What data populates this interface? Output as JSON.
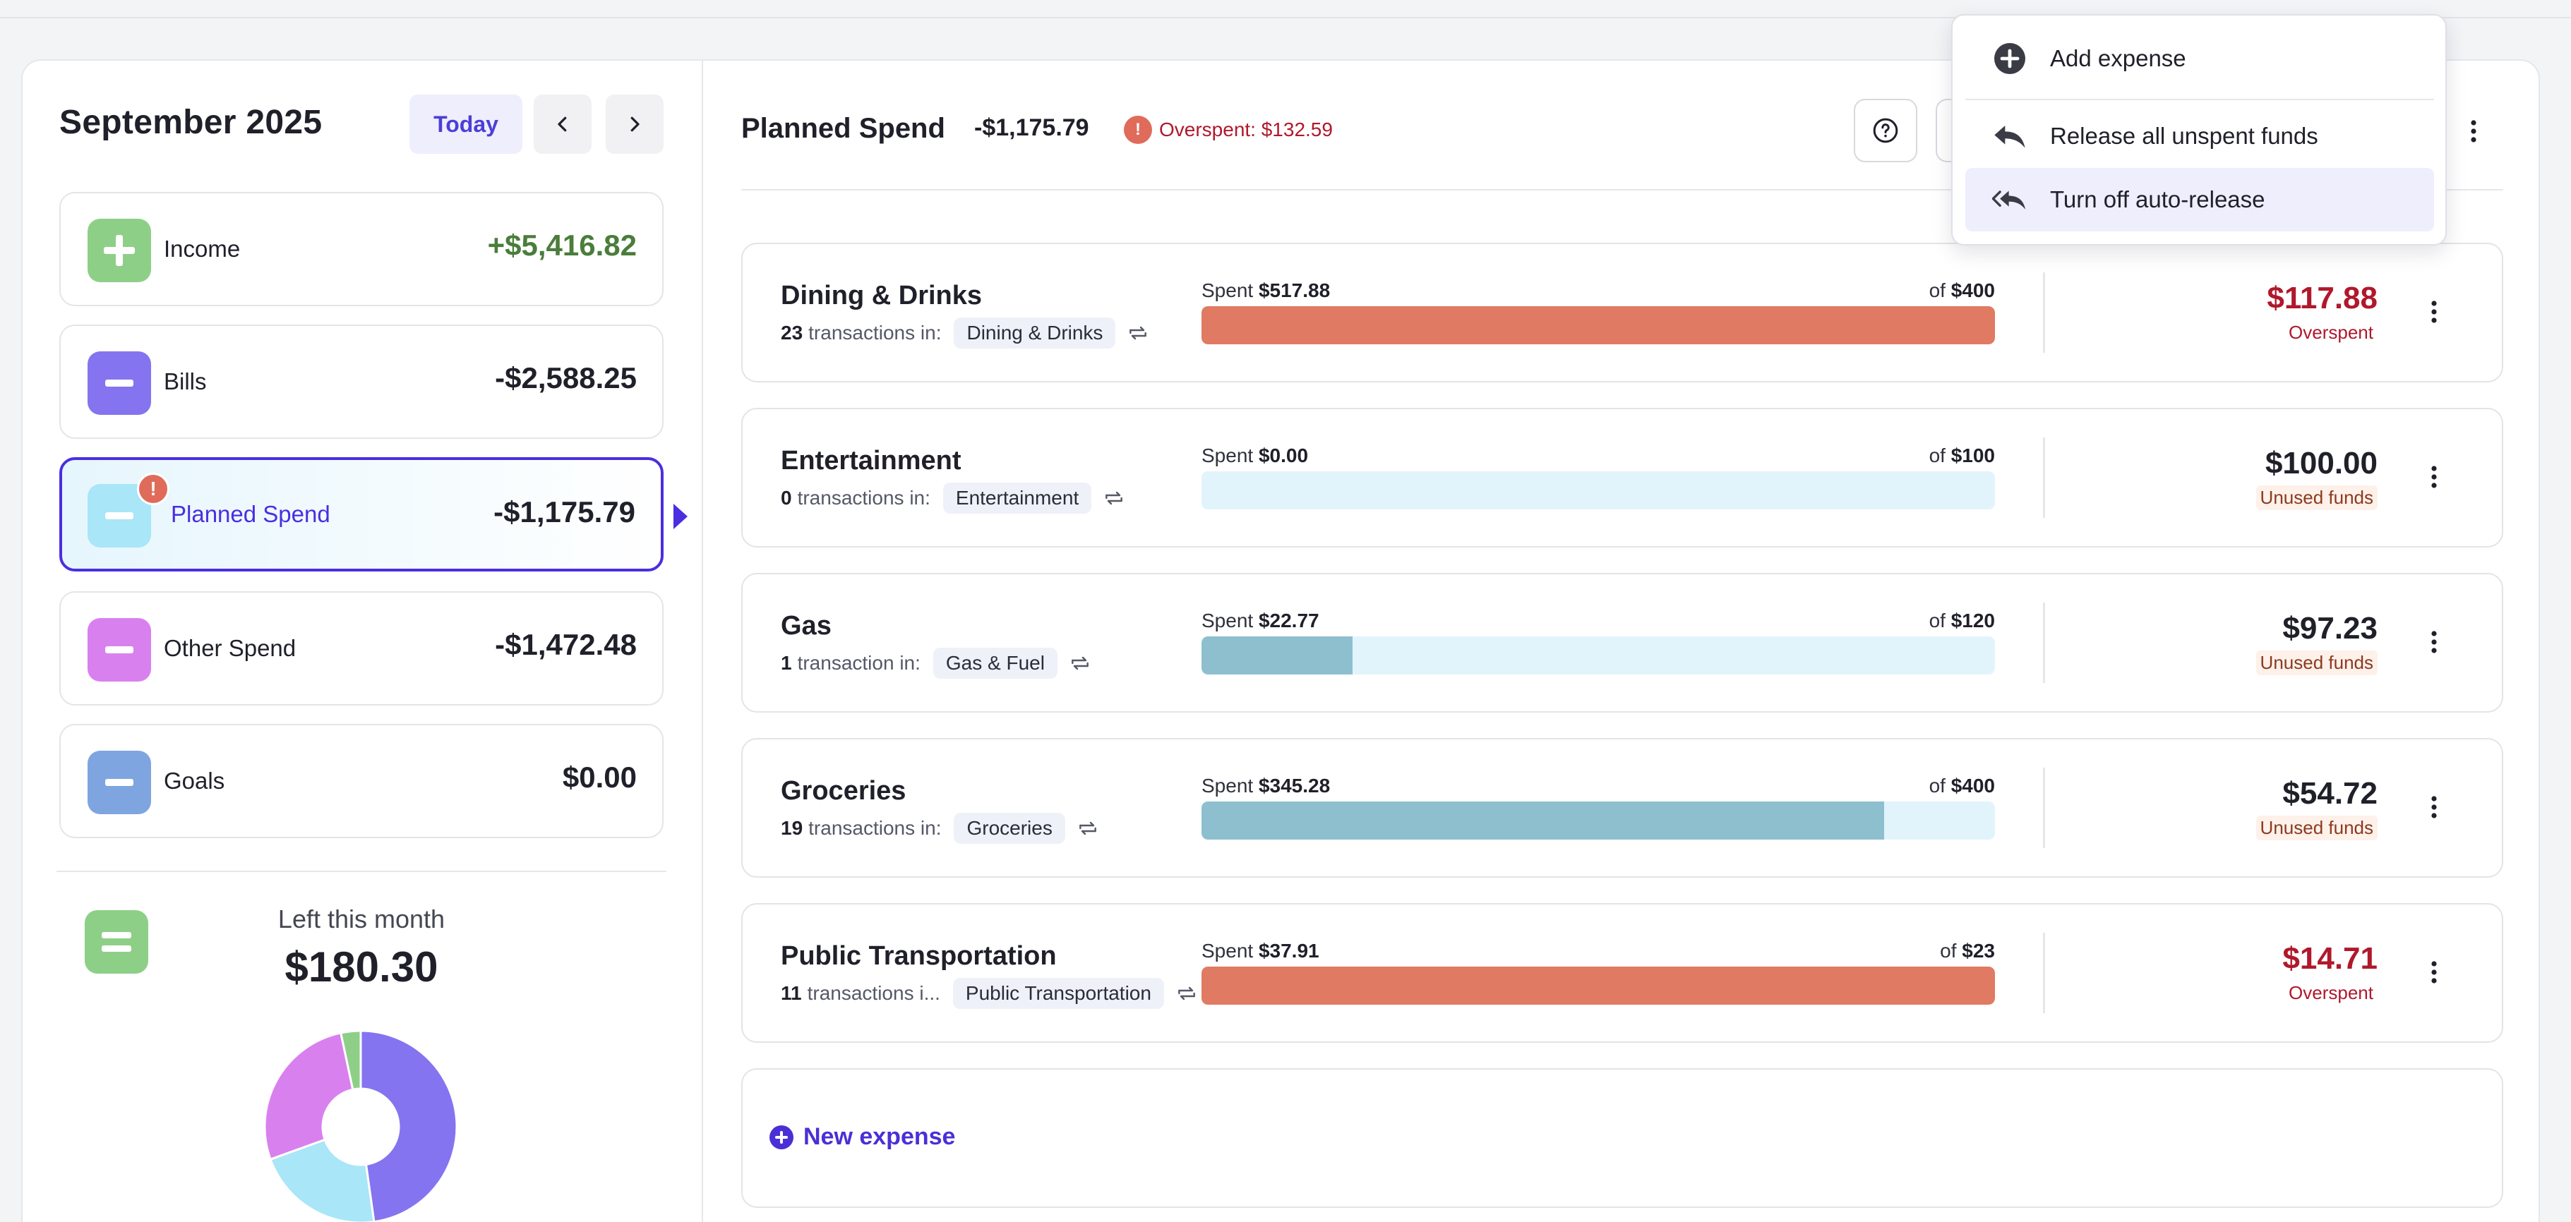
{
  "month": {
    "title": "September 2025",
    "today_label": "Today"
  },
  "categories": [
    {
      "label": "Income",
      "amount": "+$5,416.82",
      "color": "#8ecf88",
      "amount_color": "#4a7d3a",
      "icon": "plus-icon"
    },
    {
      "label": "Bills",
      "amount": "-$2,588.25",
      "color": "#8474f0",
      "amount_color": "#1f2029",
      "icon": "minus-icon"
    },
    {
      "label": "Planned Spend",
      "amount": "-$1,175.79",
      "color": "#a9e6f7",
      "amount_color": "#1f2029",
      "icon": "minus-icon",
      "alert": "!"
    },
    {
      "label": "Other Spend",
      "amount": "-$1,472.48",
      "color": "#d980ef",
      "amount_color": "#1f2029",
      "icon": "minus-icon"
    },
    {
      "label": "Goals",
      "amount": "$0.00",
      "color": "#7ea5e0",
      "amount_color": "#1f2029",
      "icon": "minus-icon"
    }
  ],
  "left_summary": {
    "label": "Left this month",
    "amount": "$180.30"
  },
  "donut": {
    "segments": [
      {
        "name": "Bills",
        "value": 2588.25,
        "color": "#8474f0"
      },
      {
        "name": "Planned Spend",
        "value": 1175.79,
        "color": "#a9e6f7"
      },
      {
        "name": "Other Spend",
        "value": 1472.48,
        "color": "#d980ef"
      },
      {
        "name": "Left",
        "value": 180.3,
        "color": "#8ecf88"
      }
    ]
  },
  "planned": {
    "title": "Planned Spend",
    "total": "-$1,175.79",
    "alert": "!",
    "overspent": "Overspent: $132.59"
  },
  "expenses": [
    {
      "name": "Dining & Drinks",
      "count": "23",
      "count_suffix": "transactions in:",
      "tag": "Dining & Drinks",
      "spent_prefix": "Spent",
      "spent": "$517.88",
      "of_prefix": "of",
      "budget": "$400",
      "progress": 1.0,
      "fill_color": "#e07a62",
      "remaining": "$117.88",
      "status": "Overspent",
      "over": true
    },
    {
      "name": "Entertainment",
      "count": "0",
      "count_suffix": "transactions in:",
      "tag": "Entertainment",
      "spent_prefix": "Spent",
      "spent": "$0.00",
      "of_prefix": "of",
      "budget": "$100",
      "progress": 0.0,
      "fill_color": "#8dbfcf",
      "remaining": "$100.00",
      "status": "Unused funds",
      "over": false
    },
    {
      "name": "Gas",
      "count": "1",
      "count_suffix": "transaction in:",
      "tag": "Gas & Fuel",
      "spent_prefix": "Spent",
      "spent": "$22.77",
      "of_prefix": "of",
      "budget": "$120",
      "progress": 0.19,
      "fill_color": "#8dbfcf",
      "remaining": "$97.23",
      "status": "Unused funds",
      "over": false
    },
    {
      "name": "Groceries",
      "count": "19",
      "count_suffix": "transactions in:",
      "tag": "Groceries",
      "spent_prefix": "Spent",
      "spent": "$345.28",
      "of_prefix": "of",
      "budget": "$400",
      "progress": 0.86,
      "fill_color": "#8dbfcf",
      "remaining": "$54.72",
      "status": "Unused funds",
      "over": false
    },
    {
      "name": "Public Transportation",
      "count": "11",
      "count_suffix": "transactions i...",
      "tag": "Public Transportation",
      "spent_prefix": "Spent",
      "spent": "$37.91",
      "of_prefix": "of",
      "budget": "$23",
      "progress": 1.0,
      "fill_color": "#e07a62",
      "remaining": "$14.71",
      "status": "Overspent",
      "over": true
    }
  ],
  "new_expense_label": "New expense",
  "dropdown": {
    "items": [
      {
        "label": "Add expense",
        "icon": "plus-circle-icon"
      },
      {
        "label": "Release all unspent funds",
        "icon": "reply-icon"
      },
      {
        "label": "Turn off auto-release",
        "icon": "reply-all-icon"
      }
    ]
  },
  "colors": {
    "accent": "#4a2ee0",
    "overspent": "#b0182c",
    "income": "#4a7d3a"
  }
}
